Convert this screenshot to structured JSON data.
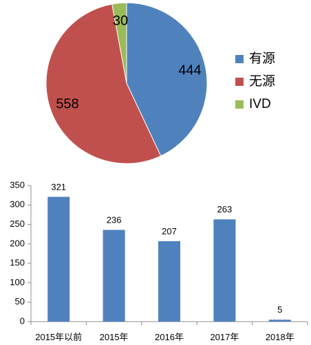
{
  "chart_data": [
    {
      "type": "pie",
      "slices": [
        {
          "name": "有源",
          "value": 444,
          "label": "444",
          "color": "#4F81BD"
        },
        {
          "name": "无源",
          "value": 558,
          "label": "558",
          "color": "#C0504D"
        },
        {
          "name": "IVD",
          "value": 30,
          "label": "30",
          "color": "#9BBB59"
        }
      ],
      "legend": {
        "position": "right",
        "entries": [
          "有源",
          "无源",
          "IVD"
        ]
      },
      "title": ""
    },
    {
      "type": "bar",
      "categories": [
        "2015年以前",
        "2015年",
        "2016年",
        "2017年",
        "2018年"
      ],
      "values": [
        321,
        236,
        207,
        263,
        5
      ],
      "data_labels": [
        "321",
        "236",
        "207",
        "263",
        "5"
      ],
      "yticks": [
        "0",
        "50",
        "100",
        "150",
        "200",
        "250",
        "300",
        "350"
      ],
      "ylim": [
        0,
        350
      ],
      "grid": false,
      "bar_color": "#4F81BD",
      "title": "",
      "xlabel": "",
      "ylabel": ""
    }
  ]
}
